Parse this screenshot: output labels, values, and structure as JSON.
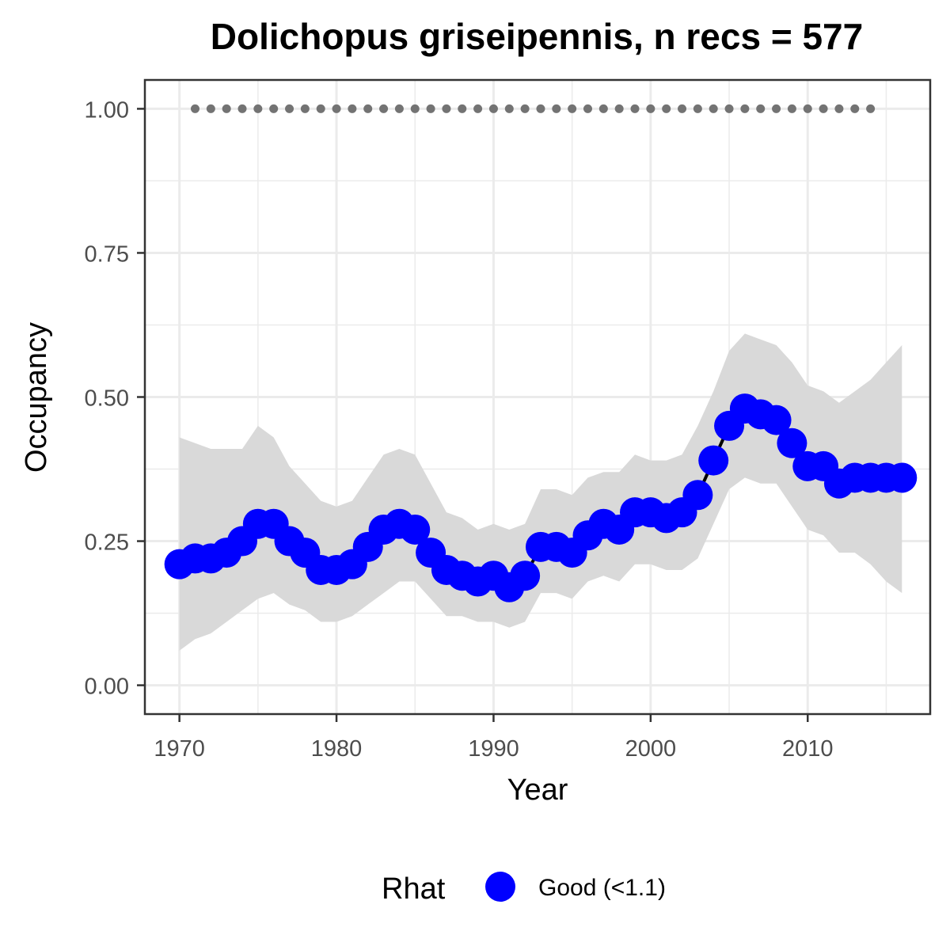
{
  "chart_data": {
    "type": "line",
    "title": "Dolichopus griseipennis, n recs = 577",
    "xlabel": "Year",
    "ylabel": "Occupancy",
    "xlim": [
      1967.8,
      2017.8
    ],
    "ylim": [
      -0.05,
      1.05
    ],
    "x_ticks": [
      1970,
      1980,
      1990,
      2000,
      2010
    ],
    "y_ticks": [
      0.0,
      0.25,
      0.5,
      0.75,
      1.0
    ],
    "x_tick_labels": [
      "1970",
      "1980",
      "1990",
      "2000",
      "2010"
    ],
    "y_tick_labels": [
      "0.00",
      "0.25",
      "0.50",
      "0.75",
      "1.00"
    ],
    "grid": true,
    "legend_position": "bottom",
    "legend": {
      "title": "Rhat",
      "entries": [
        {
          "label": "Good (<1.1)",
          "color": "#0000ff"
        }
      ]
    },
    "colors": {
      "points": "#0000ff",
      "line": "#000000",
      "ribbon": "#d9d9d9",
      "reference": "#737373",
      "panel_border": "#333333",
      "grid": "#ebebeb"
    },
    "years": [
      1970,
      1971,
      1972,
      1973,
      1974,
      1975,
      1976,
      1977,
      1978,
      1979,
      1980,
      1981,
      1982,
      1983,
      1984,
      1985,
      1986,
      1987,
      1988,
      1989,
      1990,
      1991,
      1992,
      1993,
      1994,
      1995,
      1996,
      1997,
      1998,
      1999,
      2000,
      2001,
      2002,
      2003,
      2004,
      2005,
      2006,
      2007,
      2008,
      2009,
      2010,
      2011,
      2012,
      2013,
      2014,
      2015,
      2016
    ],
    "series": [
      {
        "name": "Good (<1.1)",
        "values": [
          0.21,
          0.22,
          0.22,
          0.23,
          0.25,
          0.28,
          0.28,
          0.25,
          0.23,
          0.2,
          0.2,
          0.21,
          0.24,
          0.27,
          0.28,
          0.27,
          0.23,
          0.2,
          0.19,
          0.18,
          0.19,
          0.17,
          0.19,
          0.24,
          0.24,
          0.23,
          0.26,
          0.28,
          0.27,
          0.3,
          0.3,
          0.29,
          0.3,
          0.33,
          0.39,
          0.45,
          0.48,
          0.47,
          0.46,
          0.42,
          0.38,
          0.38,
          0.35,
          0.36,
          0.36,
          0.36,
          0.36
        ],
        "lower": [
          0.06,
          0.08,
          0.09,
          0.11,
          0.13,
          0.15,
          0.16,
          0.14,
          0.13,
          0.11,
          0.11,
          0.12,
          0.14,
          0.16,
          0.18,
          0.18,
          0.15,
          0.12,
          0.12,
          0.11,
          0.11,
          0.1,
          0.11,
          0.16,
          0.16,
          0.15,
          0.18,
          0.19,
          0.18,
          0.21,
          0.21,
          0.2,
          0.2,
          0.22,
          0.28,
          0.34,
          0.36,
          0.35,
          0.35,
          0.31,
          0.27,
          0.26,
          0.23,
          0.23,
          0.21,
          0.18,
          0.16
        ],
        "upper": [
          0.43,
          0.42,
          0.41,
          0.41,
          0.41,
          0.45,
          0.43,
          0.38,
          0.35,
          0.32,
          0.31,
          0.32,
          0.36,
          0.4,
          0.41,
          0.4,
          0.35,
          0.3,
          0.29,
          0.27,
          0.28,
          0.27,
          0.28,
          0.34,
          0.34,
          0.33,
          0.36,
          0.37,
          0.37,
          0.4,
          0.39,
          0.39,
          0.4,
          0.45,
          0.51,
          0.58,
          0.61,
          0.6,
          0.59,
          0.56,
          0.52,
          0.51,
          0.49,
          0.51,
          0.53,
          0.56,
          0.59
        ]
      }
    ],
    "reference_points": {
      "years": [
        1971,
        1972,
        1973,
        1974,
        1975,
        1976,
        1977,
        1978,
        1979,
        1980,
        1981,
        1982,
        1983,
        1984,
        1985,
        1986,
        1987,
        1988,
        1989,
        1990,
        1991,
        1992,
        1993,
        1994,
        1995,
        1996,
        1997,
        1998,
        1999,
        2000,
        2001,
        2002,
        2003,
        2004,
        2005,
        2006,
        2007,
        2008,
        2009,
        2010,
        2011,
        2012,
        2013,
        2014
      ],
      "value": 1.0
    }
  }
}
